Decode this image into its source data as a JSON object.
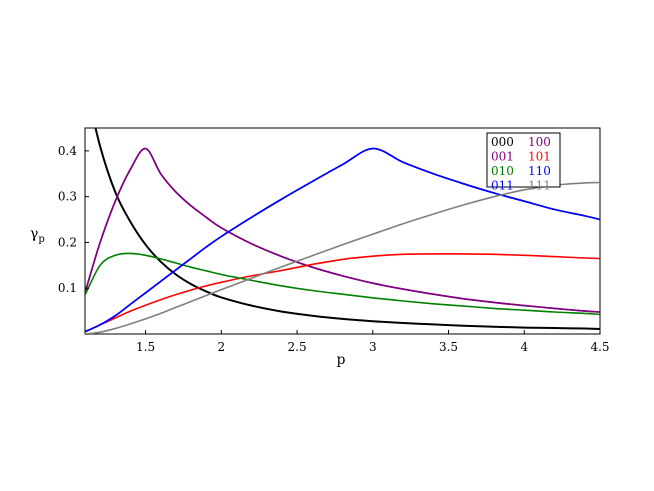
{
  "chart_data": {
    "type": "line",
    "xlabel": "p",
    "ylabel": "γ",
    "ylabel_sub": "p",
    "xlim": [
      1.1,
      4.5
    ],
    "ylim": [
      0.0,
      0.45
    ],
    "x_ticks": [
      1.5,
      2,
      2.5,
      3,
      3.5,
      4,
      4.5
    ],
    "x_tick_labels": [
      "1.5",
      "2",
      "2.5",
      "3",
      "3.5",
      "4",
      "4.5"
    ],
    "y_ticks": [
      0.1,
      0.2,
      0.3,
      0.4
    ],
    "y_tick_labels": [
      "0.1",
      "0.2",
      "0.3",
      "0.4"
    ],
    "grid": false,
    "legend_position": "top-right",
    "x": [
      1.1,
      1.2,
      1.3,
      1.4,
      1.5,
      1.6,
      1.7,
      1.8,
      1.9,
      2.0,
      2.2,
      2.4,
      2.6,
      2.8,
      3.0,
      3.2,
      3.4,
      3.6,
      3.8,
      4.0,
      4.2,
      4.4,
      4.5
    ],
    "series": [
      {
        "name": "000",
        "color": "#000000",
        "values": [
          0.55,
          0.41,
          0.31,
          0.245,
          0.195,
          0.158,
          0.13,
          0.109,
          0.093,
          0.08,
          0.062,
          0.049,
          0.04,
          0.033,
          0.028,
          0.024,
          0.021,
          0.018,
          0.016,
          0.014,
          0.013,
          0.012,
          0.011
        ]
      },
      {
        "name": "100",
        "color": "#800080",
        "values": [
          0.09,
          0.2,
          0.29,
          0.36,
          0.405,
          0.35,
          0.31,
          0.28,
          0.255,
          0.232,
          0.197,
          0.169,
          0.146,
          0.127,
          0.111,
          0.098,
          0.087,
          0.077,
          0.069,
          0.062,
          0.056,
          0.05,
          0.048
        ]
      },
      {
        "name": "001",
        "color": "#800080",
        "values": [
          0.09,
          0.2,
          0.29,
          0.36,
          0.405,
          0.35,
          0.31,
          0.28,
          0.255,
          0.232,
          0.197,
          0.169,
          0.146,
          0.127,
          0.111,
          0.098,
          0.087,
          0.077,
          0.069,
          0.062,
          0.056,
          0.05,
          0.048
        ]
      },
      {
        "name": "101",
        "color": "#ff0000",
        "values": [
          0.005,
          0.02,
          0.035,
          0.05,
          0.063,
          0.075,
          0.086,
          0.096,
          0.105,
          0.113,
          0.127,
          0.139,
          0.152,
          0.163,
          0.17,
          0.174,
          0.175,
          0.175,
          0.174,
          0.172,
          0.169,
          0.166,
          0.165
        ]
      },
      {
        "name": "010",
        "color": "#008000",
        "values": [
          0.085,
          0.15,
          0.172,
          0.176,
          0.172,
          0.164,
          0.155,
          0.146,
          0.138,
          0.13,
          0.117,
          0.105,
          0.095,
          0.087,
          0.079,
          0.072,
          0.066,
          0.061,
          0.056,
          0.052,
          0.048,
          0.045,
          0.043
        ]
      },
      {
        "name": "110",
        "color": "#0000ff",
        "values": [
          0.005,
          0.02,
          0.04,
          0.065,
          0.09,
          0.115,
          0.14,
          0.165,
          0.19,
          0.213,
          0.255,
          0.295,
          0.333,
          0.37,
          0.405,
          0.375,
          0.35,
          0.328,
          0.308,
          0.29,
          0.272,
          0.258,
          0.25
        ]
      },
      {
        "name": "011",
        "color": "#0000ff",
        "values": [
          0.005,
          0.02,
          0.04,
          0.065,
          0.09,
          0.115,
          0.14,
          0.165,
          0.19,
          0.213,
          0.255,
          0.295,
          0.333,
          0.37,
          0.405,
          0.375,
          0.35,
          0.328,
          0.308,
          0.29,
          0.272,
          0.258,
          0.25
        ]
      },
      {
        "name": "111",
        "color": "#808080",
        "values": [
          0.0,
          0.004,
          0.012,
          0.022,
          0.033,
          0.045,
          0.058,
          0.071,
          0.084,
          0.097,
          0.122,
          0.147,
          0.171,
          0.195,
          0.218,
          0.241,
          0.262,
          0.282,
          0.3,
          0.315,
          0.325,
          0.33,
          0.331
        ]
      }
    ],
    "legend": [
      [
        {
          "label": "000",
          "color": "#000000"
        },
        {
          "label": "100",
          "color": "#800080"
        }
      ],
      [
        {
          "label": "001",
          "color": "#800080"
        },
        {
          "label": "101",
          "color": "#ff0000"
        }
      ],
      [
        {
          "label": "010",
          "color": "#008000"
        },
        {
          "label": "110",
          "color": "#0000ff"
        }
      ],
      [
        {
          "label": "011",
          "color": "#0000ff"
        },
        {
          "label": "111",
          "color": "#808080"
        }
      ]
    ]
  }
}
